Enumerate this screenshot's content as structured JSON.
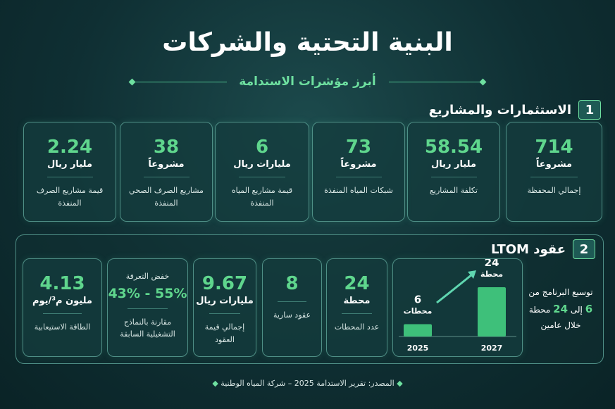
{
  "header": {
    "title": "البنية التحتية والشركات",
    "subtitle": "أبرز مؤشرات الاستدامة"
  },
  "section1": {
    "number": "1",
    "title": "الاستثمارات والمشاريع",
    "cards": [
      {
        "value": "714",
        "unit": "مشروعاً",
        "label": "إجمالي المحفظة"
      },
      {
        "value": "58.54",
        "unit": "مليار ريال",
        "label": "تكلفة المشاريع"
      },
      {
        "value": "73",
        "unit": "مشروعاً",
        "label": "شبكات المياه المنفذة"
      },
      {
        "value": "6",
        "unit": "مليارات ريال",
        "label": "قيمة مشاريع المياه المنفذة"
      },
      {
        "value": "38",
        "unit": "مشروعاً",
        "label": "مشاريع الصرف الصحي المنفذة"
      },
      {
        "value": "2.24",
        "unit": "مليار ريال",
        "label": "قيمة مشاريع الصرف المنفذة"
      }
    ]
  },
  "section2": {
    "number": "2",
    "title": "عقود LTOM",
    "expansion": {
      "line1": "توسيع البرنامج من",
      "from": "6",
      "middle": "إلى",
      "to": "24",
      "unit": "محطة",
      "line3": "خلال عامين"
    },
    "chart_data": {
      "type": "bar",
      "categories": [
        "2025",
        "2027"
      ],
      "values": [
        6,
        24
      ],
      "units": [
        "محطات",
        "محطة"
      ],
      "color": "#3ec07a"
    },
    "cards": [
      {
        "value": "24",
        "unit": "محطة",
        "label": "عدد المحطات"
      },
      {
        "value": "8",
        "unit": "",
        "label": "عقود سارية"
      },
      {
        "value": "9.67",
        "unit": "مليارات ريال",
        "label": "إجمالي قيمة العقود"
      },
      {
        "top": "خفض التعرفة",
        "value": "43% - 55%",
        "label": "مقارنة بالنماذج التشغيلية السابقة"
      },
      {
        "value": "4.13",
        "unit": "مليون م³/يوم",
        "label": "الطاقة الاستيعابية"
      }
    ]
  },
  "footer": "المصدر: تقرير الاستدامة 2025 – شركة المياه الوطنية"
}
